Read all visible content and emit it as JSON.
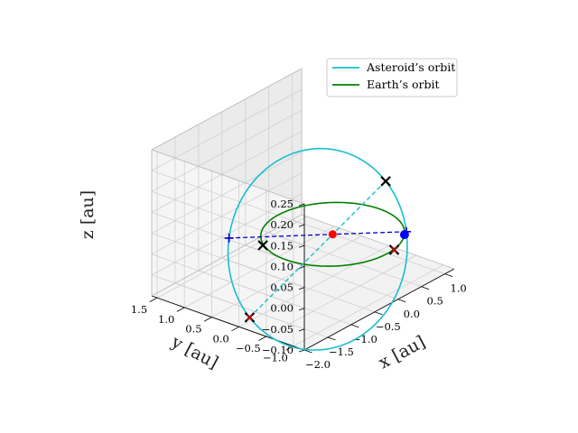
{
  "chart_data": {
    "type": "3d-line",
    "title": "",
    "legend": {
      "placement": "top-right",
      "entries": [
        {
          "label": "Asteroid’s orbit",
          "color": "#17becf"
        },
        {
          "label": "Earth’s orbit",
          "color": "#008000"
        }
      ]
    },
    "axes": {
      "x": {
        "label": "x [au]",
        "ticks": [
          "−2.0",
          "−1.5",
          "−1.0",
          "−0.5",
          "0.0",
          "0.5",
          "1.0"
        ],
        "lim": [
          -2.0,
          1.2
        ]
      },
      "y": {
        "label": "y [au]",
        "ticks": [
          "−1.0",
          "−0.5",
          "0.0",
          "0.5",
          "1.0",
          "1.5"
        ],
        "lim": [
          -1.2,
          1.6
        ]
      },
      "z": {
        "label": "z [au]",
        "ticks": [
          "−0.10",
          "−0.05",
          "0.00",
          "0.05",
          "0.10",
          "0.15",
          "0.20",
          "0.25"
        ],
        "lim": [
          -0.1,
          0.25
        ]
      }
    },
    "grid": true,
    "series": [
      {
        "name": "Asteroid’s orbit",
        "color": "#17becf",
        "style": "solid",
        "kind": "ellipse",
        "a": 1.26,
        "e": 0.22,
        "inclination_deg": 6.8,
        "node_deg": 312,
        "peri_arg_deg": 40
      },
      {
        "name": "Earth’s orbit",
        "color": "#008000",
        "style": "solid",
        "kind": "circle",
        "radius": 1.0
      }
    ],
    "points": [
      {
        "kind": "sun",
        "x": 0.0,
        "y": 0.0,
        "z": 0.0,
        "color": "#ff0000"
      },
      {
        "kind": "asteroid",
        "x": 0.72,
        "y": -0.7,
        "z": -0.012,
        "color": "#0000ff"
      }
    ]
  }
}
